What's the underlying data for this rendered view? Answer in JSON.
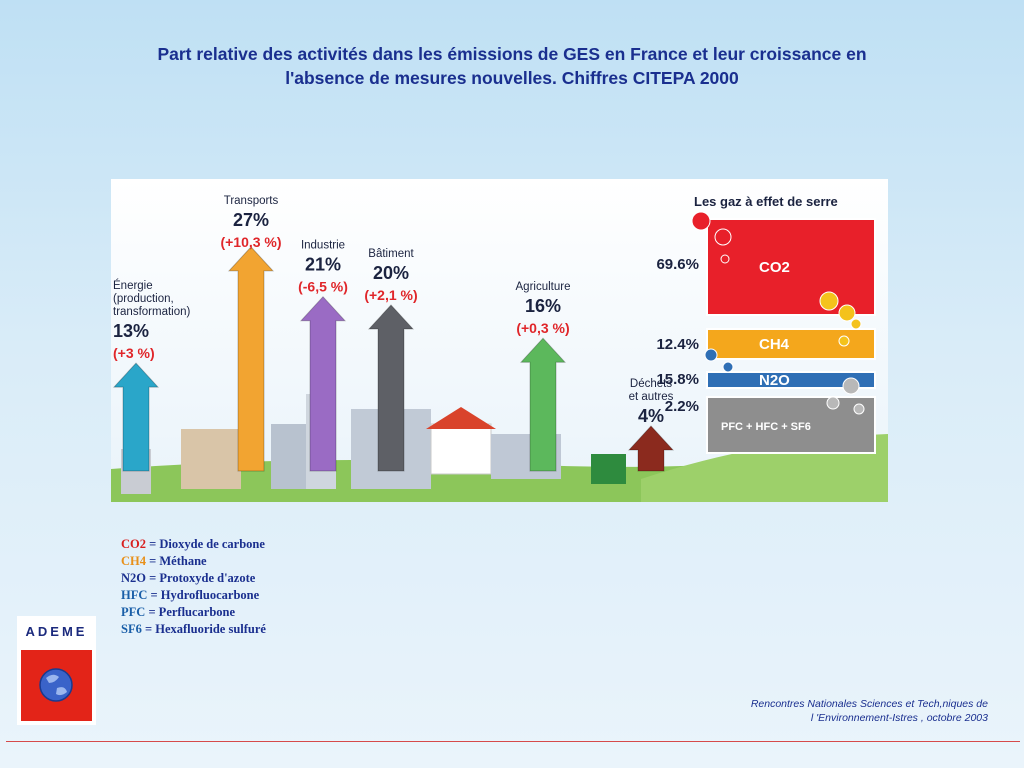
{
  "title_line1": "Part relative des activités dans les émissions de GES en France et leur croissance en",
  "title_line2": "l'absence de mesures nouvelles. Chiffres CITEPA 2000",
  "chart_data": {
    "type": "bar",
    "title": "",
    "categories": [
      {
        "label_lines": [
          "Énergie",
          "(production,",
          "transformation)"
        ],
        "value": 13,
        "value_label": "13%",
        "growth_label": "(+3 %)",
        "color": "#2aa6c9"
      },
      {
        "label_lines": [
          "Transports"
        ],
        "value": 27,
        "value_label": "27%",
        "growth_label": "(+10,3 %)",
        "color": "#f2a431"
      },
      {
        "label_lines": [
          "Industrie"
        ],
        "value": 21,
        "value_label": "21%",
        "growth_label": "(-6,5 %)",
        "color": "#9a6bc4"
      },
      {
        "label_lines": [
          "Bâtiment"
        ],
        "value": 20,
        "value_label": "20%",
        "growth_label": "(+2,1 %)",
        "color": "#5e6066"
      },
      {
        "label_lines": [
          "Agriculture"
        ],
        "value": 16,
        "value_label": "16%",
        "growth_label": "(+0,3 %)",
        "color": "#5cb85c"
      },
      {
        "label_lines": [
          "Déchets",
          "et autres"
        ],
        "value": 4,
        "value_label": "4%",
        "growth_label": "",
        "color": "#8b2a1e"
      }
    ],
    "gases_title": "Les gaz à effet de serre",
    "gases": [
      {
        "name": "CO2",
        "value": 69.6,
        "value_label": "69.6%",
        "color": "#e8202a"
      },
      {
        "name": "CH4",
        "value": 12.4,
        "value_label": "12.4%",
        "color": "#f4a71c"
      },
      {
        "name": "N2O",
        "value": 15.8,
        "value_label": "15.8%",
        "color": "#2f6fb5"
      },
      {
        "name": "PFC + HFC + SF6",
        "value": 2.2,
        "value_label": "2.2%",
        "color": "#8e8e8e"
      }
    ]
  },
  "legend": [
    {
      "code": "CO2",
      "desc": " = Dioxyde de carbone",
      "code_color": "#d81e1e"
    },
    {
      "code": "CH4",
      "desc": " = Méthane",
      "code_color": "#e8901a"
    },
    {
      "code": "N2O",
      "desc": " = Protoxyde d'azote",
      "code_color": "#1a2f8f"
    },
    {
      "code": "HFC",
      "desc": " = Hydrofluocarbone",
      "code_color": "#1a5fa8"
    },
    {
      "code": "PFC",
      "desc": " = Perflucarbone",
      "code_color": "#1a5fa8"
    },
    {
      "code": "SF6",
      "desc": " = Hexafluoride sulfuré",
      "code_color": "#1a5fa8"
    }
  ],
  "logo": {
    "text": "ADEME"
  },
  "footer_line1": "Rencontres Nationales Sciences et Tech,niques de",
  "footer_line2": "l 'Environnement-Istres , octobre  2003"
}
